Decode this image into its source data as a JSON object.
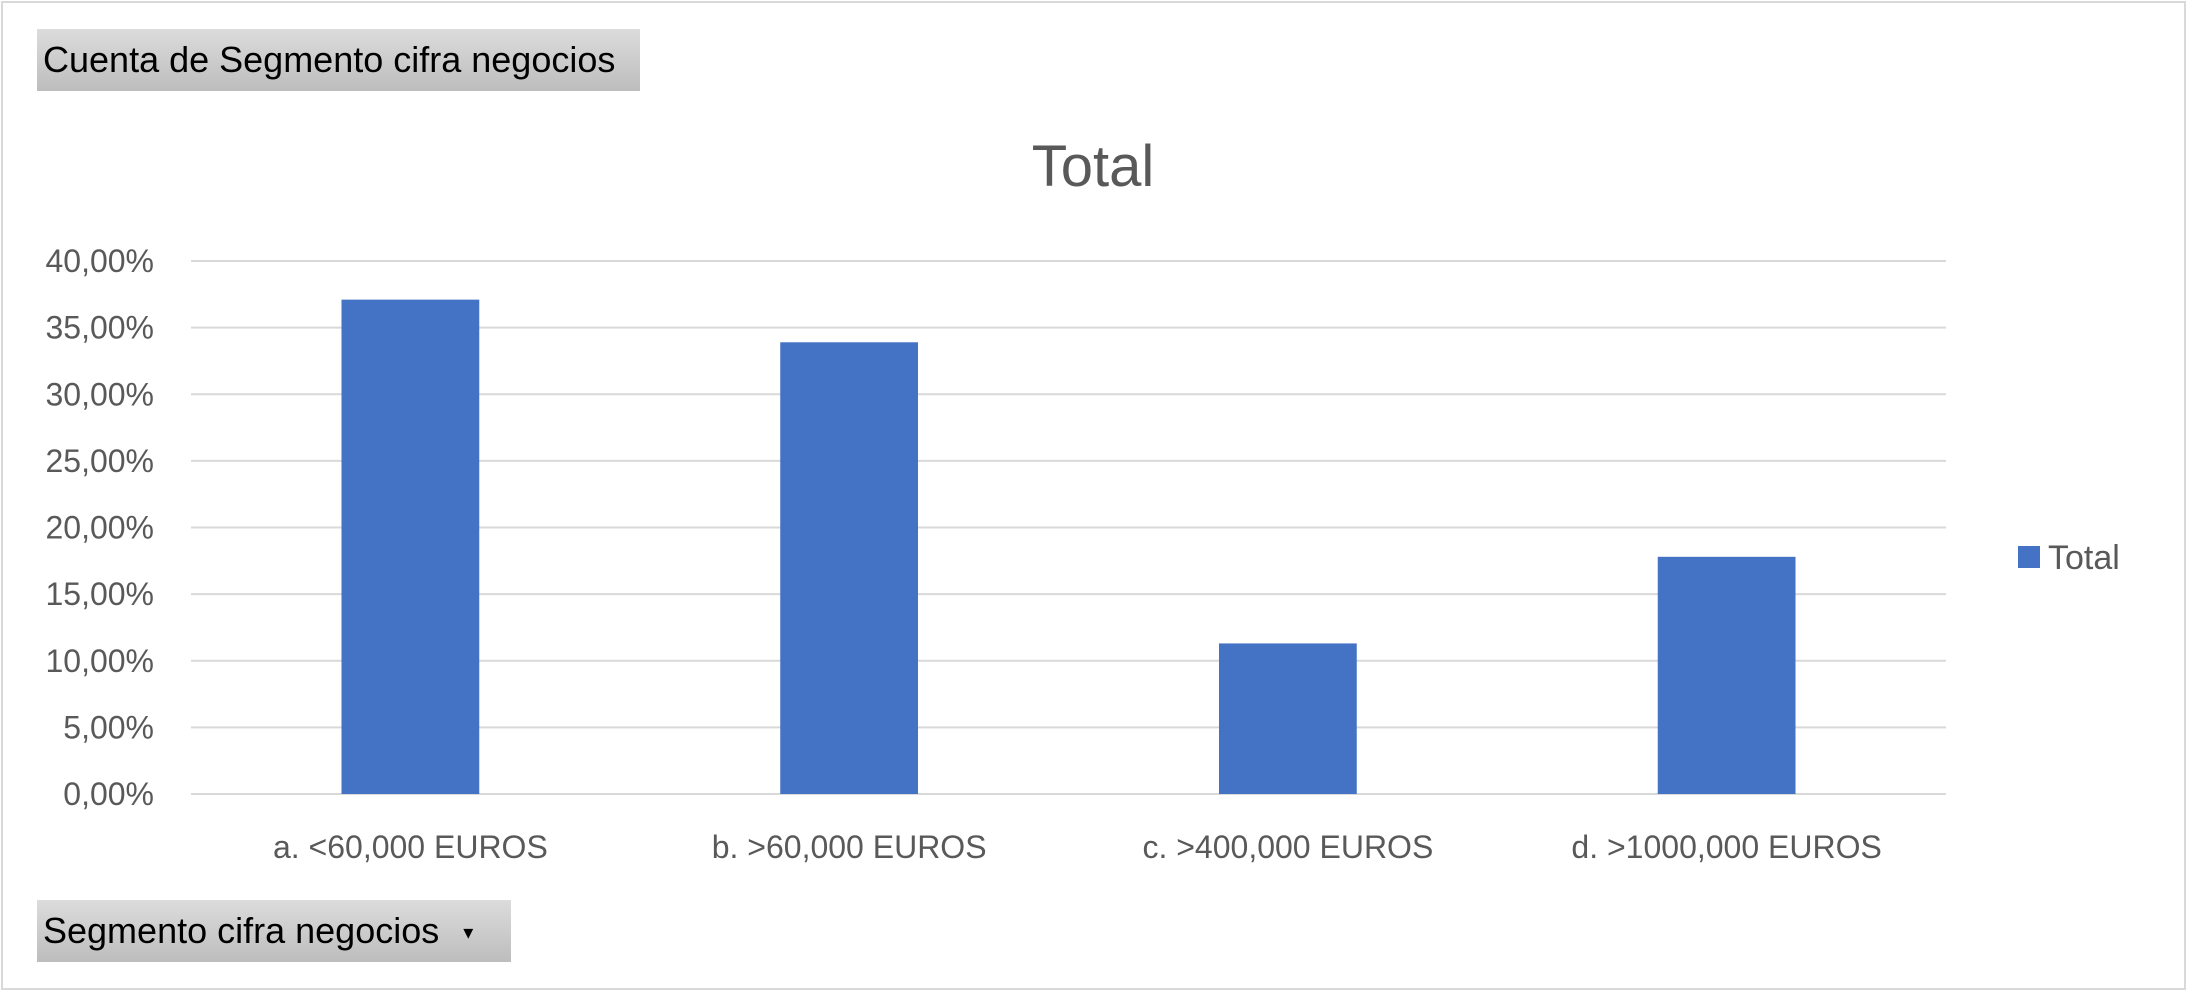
{
  "field_buttons": {
    "values_field": "Cuenta de Segmento cifra negocios",
    "axis_field": "Segmento cifra negocios",
    "axis_arrow": "▾"
  },
  "colors": {
    "bar": "#4472c4",
    "grid": "#d9d9d9",
    "text": "#595959"
  },
  "chart_data": {
    "type": "bar",
    "title": "Total",
    "categories": [
      "a. <60,000 EUROS",
      "b. >60,000 EUROS",
      "c. >400,000 EUROS",
      "d. >1000,000 EUROS"
    ],
    "series": [
      {
        "name": "Total",
        "values": [
          37.1,
          33.9,
          11.3,
          17.8
        ]
      }
    ],
    "ylim": [
      0,
      40
    ],
    "y_ticks": [
      0,
      5,
      10,
      15,
      20,
      25,
      30,
      35,
      40
    ],
    "y_tick_labels": [
      "0,00%",
      "5,00%",
      "10,00%",
      "15,00%",
      "20,00%",
      "25,00%",
      "30,00%",
      "35,00%",
      "40,00%"
    ],
    "grid": true,
    "legend_position": "right"
  }
}
